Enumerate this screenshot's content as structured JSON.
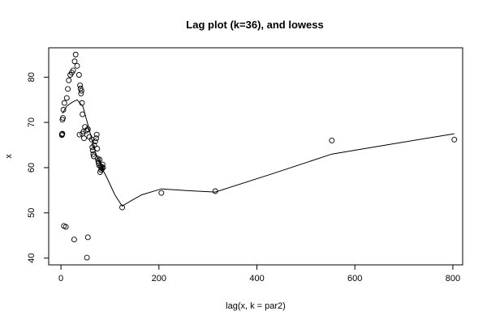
{
  "chart_data": {
    "type": "scatter",
    "title": "Lag plot (k=36), and lowess",
    "xlabel": "lag(x, k = par2)",
    "ylabel": "x",
    "xlim": [
      -25,
      820
    ],
    "ylim": [
      38.5,
      86.5
    ],
    "x_ticks": [
      0,
      200,
      400,
      600,
      800
    ],
    "y_ticks": [
      40,
      50,
      60,
      70,
      80
    ],
    "grid": false,
    "legend": "none",
    "points": [
      [
        2,
        67.2
      ],
      [
        3,
        67.5
      ],
      [
        2,
        67.4
      ],
      [
        4,
        71.0
      ],
      [
        3,
        70.6
      ],
      [
        5,
        72.8
      ],
      [
        7,
        74.3
      ],
      [
        12,
        75.4
      ],
      [
        14,
        77.4
      ],
      [
        16,
        79.3
      ],
      [
        19,
        80.5
      ],
      [
        22,
        81.0
      ],
      [
        25,
        81.5
      ],
      [
        28,
        83.5
      ],
      [
        30,
        85.0
      ],
      [
        33,
        82.5
      ],
      [
        37,
        80.5
      ],
      [
        39,
        78.2
      ],
      [
        40,
        77.5
      ],
      [
        41,
        76.4
      ],
      [
        42,
        77.0
      ],
      [
        43,
        74.3
      ],
      [
        44,
        71.8
      ],
      [
        38,
        67.3
      ],
      [
        44,
        67.5
      ],
      [
        46,
        68.0
      ],
      [
        47,
        66.5
      ],
      [
        49,
        69.0
      ],
      [
        52,
        68.2
      ],
      [
        55,
        68.5
      ],
      [
        58,
        66.8
      ],
      [
        63,
        66.2
      ],
      [
        64,
        64.5
      ],
      [
        65,
        63.8
      ],
      [
        66,
        63.0
      ],
      [
        67,
        62.5
      ],
      [
        68,
        65.0
      ],
      [
        70,
        65.8
      ],
      [
        72,
        66.5
      ],
      [
        73,
        67.3
      ],
      [
        74,
        64.2
      ],
      [
        75,
        62.0
      ],
      [
        76,
        61.5
      ],
      [
        77,
        61.0
      ],
      [
        78,
        60.5
      ],
      [
        79,
        61.8
      ],
      [
        80,
        59.0
      ],
      [
        81,
        60.3
      ],
      [
        82,
        59.5
      ],
      [
        83,
        60.2
      ],
      [
        84,
        59.8
      ],
      [
        85,
        60.7
      ],
      [
        86,
        60.0
      ],
      [
        6,
        47.1
      ],
      [
        10,
        46.9
      ],
      [
        27,
        44.1
      ],
      [
        55,
        44.6
      ],
      [
        53,
        40.1
      ],
      [
        125,
        51.2
      ],
      [
        205,
        54.4
      ],
      [
        315,
        54.8
      ],
      [
        553,
        66.0
      ],
      [
        803,
        66.2
      ]
    ],
    "lowess": [
      [
        3,
        72.0
      ],
      [
        12,
        73.6
      ],
      [
        22,
        74.4
      ],
      [
        33,
        75.0
      ],
      [
        45,
        73.5
      ],
      [
        58,
        68.3
      ],
      [
        70,
        63.5
      ],
      [
        82,
        60.3
      ],
      [
        95,
        57.5
      ],
      [
        110,
        54.0
      ],
      [
        125,
        51.5
      ],
      [
        145,
        52.8
      ],
      [
        165,
        54.0
      ],
      [
        205,
        55.3
      ],
      [
        260,
        54.9
      ],
      [
        315,
        54.6
      ],
      [
        430,
        58.6
      ],
      [
        553,
        63.0
      ],
      [
        680,
        65.3
      ],
      [
        803,
        67.5
      ]
    ]
  }
}
